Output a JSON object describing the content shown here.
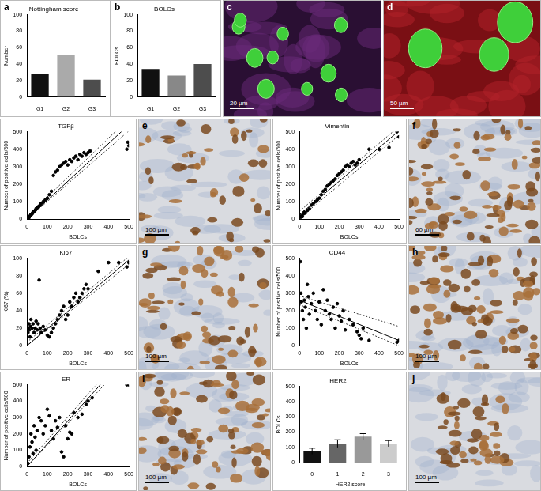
{
  "chart_data": [
    {
      "panel": "a",
      "type": "bar",
      "title": "Nottingham score",
      "y_label": "Number",
      "categories": [
        "G1",
        "G2",
        "G3"
      ],
      "values": [
        28,
        51,
        21
      ],
      "colors": [
        "#111111",
        "#aaaaaa",
        "#4d4d4d"
      ],
      "ylim": [
        0,
        100
      ],
      "yticks": [
        0,
        20,
        40,
        60,
        80,
        100
      ],
      "grid": false
    },
    {
      "panel": "b",
      "type": "bar",
      "title": "BOLCs",
      "y_label": "BOLCs",
      "categories": [
        "G1",
        "G2",
        "G3"
      ],
      "values": [
        34,
        26,
        40
      ],
      "colors": [
        "#111111",
        "#888888",
        "#4d4d4d"
      ],
      "ylim": [
        0,
        100
      ],
      "yticks": [
        0,
        20,
        40,
        60,
        80,
        100
      ],
      "grid": false
    },
    {
      "type": "scatter",
      "title": "TGFβ",
      "x_label": "BOLCs",
      "y_label": "Number of positive cells/500",
      "x": [
        5,
        8,
        10,
        12,
        15,
        18,
        20,
        22,
        25,
        28,
        30,
        35,
        40,
        45,
        50,
        55,
        60,
        65,
        70,
        80,
        90,
        100,
        110,
        120,
        130,
        140,
        150,
        160,
        170,
        180,
        190,
        200,
        210,
        220,
        230,
        240,
        250,
        260,
        270,
        280,
        290,
        300,
        310,
        490,
        495,
        500
      ],
      "y": [
        5,
        10,
        8,
        15,
        18,
        20,
        25,
        28,
        30,
        35,
        40,
        45,
        50,
        60,
        65,
        70,
        75,
        80,
        90,
        100,
        110,
        120,
        140,
        160,
        250,
        270,
        280,
        300,
        310,
        320,
        330,
        310,
        340,
        330,
        350,
        360,
        340,
        370,
        360,
        380,
        370,
        380,
        390,
        400,
        440,
        420
      ],
      "fit": {
        "x": [
          0,
          500
        ],
        "y": [
          0,
          540
        ]
      },
      "ci_upper": {
        "x": [
          0,
          500
        ],
        "y": [
          15,
          575
        ]
      },
      "ci_lower": {
        "x": [
          0,
          500
        ],
        "y": [
          0,
          505
        ]
      },
      "xlim": [
        0,
        500
      ],
      "xticks": [
        0,
        100,
        200,
        300,
        400,
        500
      ],
      "ylim": [
        0,
        500
      ],
      "yticks": [
        0,
        100,
        200,
        300,
        400,
        500
      ],
      "grid": false
    },
    {
      "type": "scatter",
      "title": "Vimentin",
      "x_label": "BOLCs",
      "y_label": "Number of positive cells/500",
      "x": [
        5,
        10,
        15,
        20,
        25,
        30,
        40,
        50,
        60,
        70,
        80,
        90,
        100,
        110,
        120,
        130,
        140,
        150,
        160,
        170,
        180,
        190,
        200,
        210,
        220,
        230,
        240,
        250,
        260,
        270,
        280,
        290,
        300,
        350,
        400,
        450,
        490,
        500
      ],
      "y": [
        10,
        20,
        15,
        30,
        40,
        35,
        50,
        60,
        80,
        90,
        100,
        110,
        120,
        140,
        160,
        170,
        190,
        200,
        210,
        220,
        230,
        250,
        260,
        270,
        280,
        300,
        310,
        300,
        320,
        330,
        310,
        320,
        340,
        400,
        400,
        410,
        500,
        470
      ],
      "fit": {
        "x": [
          0,
          500
        ],
        "y": [
          25,
          505
        ]
      },
      "ci_upper": {
        "x": [
          0,
          500
        ],
        "y": [
          45,
          530
        ]
      },
      "ci_lower": {
        "x": [
          0,
          500
        ],
        "y": [
          5,
          480
        ]
      },
      "xlim": [
        0,
        500
      ],
      "xticks": [
        0,
        100,
        200,
        300,
        400,
        500
      ],
      "ylim": [
        0,
        500
      ],
      "yticks": [
        0,
        100,
        200,
        300,
        400,
        500
      ],
      "grid": false
    },
    {
      "type": "scatter",
      "title": "Ki67",
      "x_label": "BOLCs",
      "y_label": "Ki67 (%)",
      "x": [
        5,
        8,
        10,
        12,
        15,
        18,
        20,
        25,
        30,
        35,
        40,
        45,
        50,
        55,
        60,
        65,
        70,
        80,
        90,
        100,
        110,
        120,
        130,
        140,
        150,
        160,
        170,
        180,
        190,
        200,
        210,
        220,
        230,
        240,
        250,
        260,
        270,
        280,
        290,
        300,
        350,
        400,
        450,
        490,
        500
      ],
      "y": [
        15,
        20,
        25,
        18,
        10,
        22,
        30,
        20,
        25,
        15,
        20,
        28,
        18,
        25,
        75,
        20,
        15,
        22,
        18,
        12,
        10,
        15,
        20,
        25,
        30,
        35,
        40,
        45,
        30,
        35,
        50,
        45,
        55,
        60,
        50,
        55,
        60,
        65,
        70,
        65,
        85,
        95,
        95,
        90,
        95
      ],
      "fit": {
        "x": [
          0,
          500
        ],
        "y": [
          0,
          98
        ]
      },
      "ci_upper": {
        "x": [
          0,
          500
        ],
        "y": [
          4,
          102
        ]
      },
      "ci_lower": {
        "x": [
          0,
          500
        ],
        "y": [
          0,
          93
        ]
      },
      "xlim": [
        0,
        500
      ],
      "xticks": [
        0,
        100,
        200,
        300,
        400,
        500
      ],
      "ylim": [
        0,
        100
      ],
      "yticks": [
        0,
        20,
        40,
        60,
        80,
        100
      ],
      "grid": false
    },
    {
      "type": "scatter",
      "title": "CD44",
      "x_label": "BOLCs",
      "y_label": "Number of positive cells/500",
      "x": [
        5,
        8,
        10,
        15,
        20,
        25,
        30,
        35,
        40,
        45,
        50,
        60,
        70,
        80,
        90,
        100,
        110,
        120,
        130,
        140,
        150,
        160,
        170,
        180,
        190,
        200,
        210,
        220,
        230,
        250,
        270,
        290,
        300,
        310,
        320,
        350,
        490,
        500
      ],
      "y": [
        480,
        300,
        250,
        200,
        150,
        260,
        220,
        100,
        350,
        280,
        180,
        240,
        300,
        200,
        150,
        250,
        120,
        320,
        200,
        260,
        180,
        150,
        220,
        100,
        240,
        170,
        140,
        200,
        90,
        150,
        120,
        80,
        60,
        40,
        100,
        30,
        20,
        30
      ],
      "fit": {
        "x": [
          0,
          500
        ],
        "y": [
          260,
          30
        ]
      },
      "ci_upper": {
        "x": [
          0,
          500
        ],
        "y": [
          285,
          110
        ]
      },
      "ci_lower": {
        "x": [
          0,
          500
        ],
        "y": [
          235,
          0
        ]
      },
      "xlim": [
        0,
        500
      ],
      "xticks": [
        0,
        100,
        200,
        300,
        400,
        500
      ],
      "ylim": [
        0,
        500
      ],
      "yticks": [
        0,
        100,
        200,
        300,
        400,
        500
      ],
      "grid": false
    },
    {
      "type": "scatter",
      "title": "ER",
      "x_label": "BOLCs",
      "y_label": "Number of positive cells/500",
      "x": [
        5,
        10,
        15,
        20,
        25,
        30,
        35,
        40,
        45,
        50,
        60,
        70,
        80,
        90,
        100,
        110,
        120,
        130,
        140,
        150,
        160,
        170,
        180,
        190,
        200,
        210,
        220,
        230,
        250,
        270,
        290,
        300,
        320,
        490,
        500
      ],
      "y": [
        20,
        60,
        120,
        200,
        150,
        80,
        250,
        180,
        100,
        220,
        300,
        280,
        200,
        250,
        350,
        310,
        220,
        170,
        280,
        240,
        300,
        90,
        60,
        250,
        170,
        210,
        200,
        330,
        300,
        320,
        380,
        400,
        420,
        500,
        500
      ],
      "fit": {
        "x": [
          0,
          360
        ],
        "y": [
          0,
          500
        ]
      },
      "ci_upper": {
        "x": [
          0,
          340
        ],
        "y": [
          20,
          500
        ]
      },
      "ci_lower": {
        "x": [
          0,
          380
        ],
        "y": [
          0,
          500
        ]
      },
      "xlim": [
        0,
        500
      ],
      "xticks": [
        0,
        100,
        200,
        300,
        400,
        500
      ],
      "ylim": [
        0,
        500
      ],
      "yticks": [
        0,
        100,
        200,
        300,
        400,
        500
      ],
      "grid": false
    },
    {
      "type": "bar",
      "title": "HER2",
      "x_label": "HER2 score",
      "y_label": "BOLCs",
      "categories": [
        "0",
        "1",
        "2",
        "3"
      ],
      "values": [
        75,
        125,
        170,
        125
      ],
      "errors": [
        20,
        25,
        20,
        20
      ],
      "colors": [
        "#111111",
        "#666666",
        "#999999",
        "#cccccc"
      ],
      "ylim": [
        0,
        500
      ],
      "yticks": [
        0,
        100,
        200,
        300,
        400,
        500
      ],
      "grid": false
    }
  ],
  "images": [
    {
      "panel": "c",
      "kind": "fluorescence",
      "scale_bar": "20 µm"
    },
    {
      "panel": "d",
      "kind": "fluorescence",
      "scale_bar": "50 µm"
    },
    {
      "panel": "e",
      "kind": "immunohistochemistry",
      "scale_bar": "100 µm"
    },
    {
      "panel": "f",
      "kind": "immunohistochemistry",
      "scale_bar": "60 µm"
    },
    {
      "panel": "g",
      "kind": "immunohistochemistry",
      "scale_bar": "100 µm"
    },
    {
      "panel": "h",
      "kind": "immunohistochemistry",
      "scale_bar": "100 µm"
    },
    {
      "panel": "i",
      "kind": "immunohistochemistry",
      "scale_bar": "100 µm"
    },
    {
      "panel": "j",
      "kind": "immunohistochemistry",
      "scale_bar": "100 µm"
    }
  ]
}
